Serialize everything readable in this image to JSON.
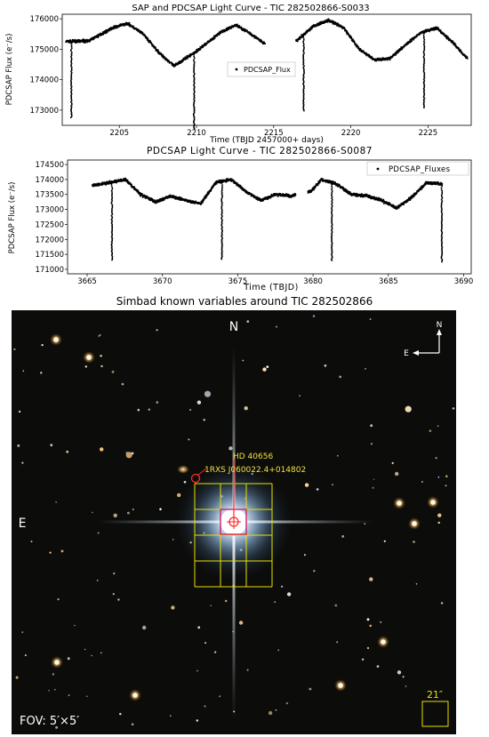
{
  "chart_data": [
    {
      "type": "scatter",
      "title": "SAP and PDCSAP Light Curve - TIC 282502866-S0033",
      "xlabel": "Time (TBJD 2457000+ days)",
      "ylabel": "PDCSAP Flux (e⁻/s)",
      "xlim": [
        2201.3,
        2227.8
      ],
      "ylim": [
        172500,
        176150
      ],
      "xticks": [
        2205,
        2210,
        2215,
        2220,
        2225
      ],
      "yticks": [
        173000,
        174000,
        175000,
        176000
      ],
      "legend": {
        "entries": [
          "PDCSAP_Flux"
        ],
        "placement": "center"
      },
      "gaps": [
        [
          2214.4,
          2216.4
        ]
      ],
      "baseline": {
        "mean": 175100,
        "amplitude": 720,
        "period": 10.3,
        "peak_time": 2213.0
      },
      "eclipses": [
        {
          "time": 2201.85,
          "depth": 2500
        },
        {
          "time": 2209.8,
          "depth": 2500
        },
        {
          "time": 2216.9,
          "depth": 2500
        },
        {
          "time": 2224.7,
          "depth": 2500
        }
      ],
      "series": [
        {
          "name": "PDCSAP_Flux",
          "color": "#000000",
          "x": [
            2201.5,
            2203.0,
            2204.5,
            2205.5,
            2206.5,
            2207.5,
            2208.5,
            2210.0,
            2211.5,
            2212.5,
            2213.5,
            2214.3,
            2216.5,
            2217.5,
            2218.5,
            2219.5,
            2220.5,
            2221.5,
            2222.5,
            2223.5,
            2224.5,
            2225.5,
            2226.5,
            2227.5
          ],
          "y": [
            175250,
            175280,
            175700,
            175850,
            175500,
            174900,
            174450,
            174950,
            175550,
            175800,
            175500,
            175200,
            175300,
            175750,
            175950,
            175700,
            175000,
            174650,
            174700,
            175150,
            175550,
            175700,
            175250,
            174700
          ]
        }
      ]
    },
    {
      "type": "scatter",
      "title": "PDCSAP Light Curve - TIC 282502866-S0087",
      "xlabel": "Time (TBJD)",
      "ylabel": "PDCSAP Flux (e⁻/s)",
      "xlim": [
        3663.7,
        3690.5
      ],
      "ylim": [
        170850,
        174650
      ],
      "xticks": [
        3665,
        3670,
        3675,
        3680,
        3685,
        3690
      ],
      "yticks": [
        171000,
        171500,
        172000,
        172500,
        173000,
        173500,
        174000,
        174500
      ],
      "legend": {
        "entries": [
          "PDCSAP_Fluxes"
        ],
        "placement": "top-right"
      },
      "gaps": [
        [
          3678.8,
          3679.6
        ]
      ],
      "baseline": {
        "mean": 173600,
        "amplitude": 420,
        "period": 7.35,
        "peak_time": 3673.7
      },
      "eclipses": [
        {
          "time": 3666.6,
          "depth": 2600
        },
        {
          "time": 3673.9,
          "depth": 2600
        },
        {
          "time": 3681.2,
          "depth": 2600
        },
        {
          "time": 3688.5,
          "depth": 2600
        }
      ],
      "series": [
        {
          "name": "PDCSAP_Fluxes",
          "color": "#000000",
          "x": [
            3665.3,
            3666.5,
            3667.5,
            3668.5,
            3669.5,
            3670.5,
            3671.5,
            3672.5,
            3673.5,
            3674.5,
            3675.5,
            3676.5,
            3677.5,
            3678.5,
            3679.8,
            3680.5,
            3681.5,
            3682.5,
            3683.5,
            3684.5,
            3685.5,
            3686.5,
            3687.5,
            3688.5
          ],
          "y": [
            173800,
            173900,
            174000,
            173500,
            173250,
            173450,
            173300,
            173200,
            173900,
            174000,
            173600,
            173300,
            173500,
            173450,
            173600,
            174000,
            173850,
            173500,
            173450,
            173300,
            173050,
            173400,
            173900,
            173850
          ]
        }
      ]
    }
  ],
  "sky_image": {
    "title": "Simbad known variables around TIC 282502866",
    "north_label": "N",
    "east_label": "E",
    "compass_n": "N",
    "compass_e": "E",
    "target_label": "HD  40656",
    "variable_label": "1RXS J060022.4+014802",
    "fov_label": "FOV: 5′×5′",
    "pixel_scale_label": "21″",
    "colors": {
      "grid": "#e8e000",
      "target": "#cc2266",
      "marker": "#ff2a2a",
      "sky": "#0c0c0a"
    }
  }
}
